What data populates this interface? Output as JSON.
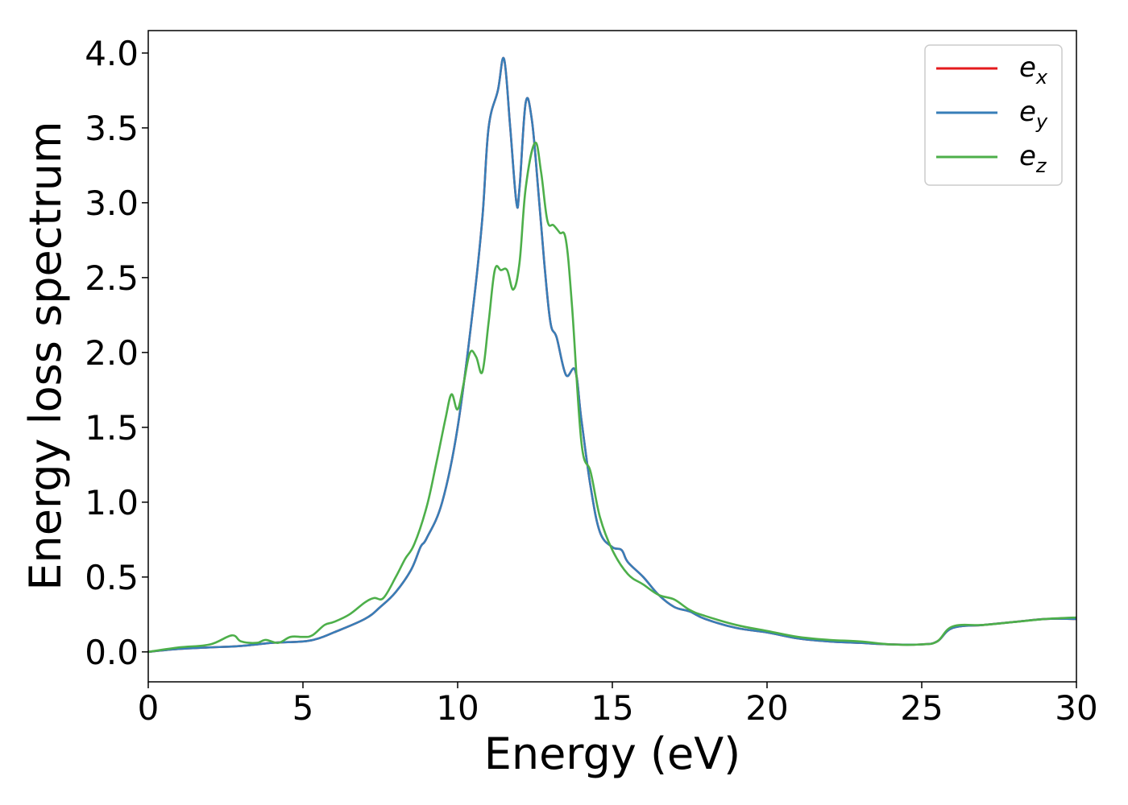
{
  "chart_data": {
    "type": "line",
    "xlabel": "Energy (eV)",
    "ylabel": "Energy loss spectrum",
    "xlim": [
      0,
      30
    ],
    "ylim": [
      -0.2,
      4.15
    ],
    "x_ticks": [
      0,
      5,
      10,
      15,
      20,
      25,
      30
    ],
    "x_tick_labels": [
      "0",
      "5",
      "10",
      "15",
      "20",
      "25",
      "30"
    ],
    "y_ticks": [
      0.0,
      0.5,
      1.0,
      1.5,
      2.0,
      2.5,
      3.0,
      3.5,
      4.0
    ],
    "y_tick_labels": [
      "0.0",
      "0.5",
      "1.0",
      "1.5",
      "2.0",
      "2.5",
      "3.0",
      "3.5",
      "4.0"
    ],
    "grid": false,
    "legend_position": "top-right",
    "series": [
      {
        "name": "e",
        "subscript": "x",
        "color": "#e41a1c",
        "x": [
          0,
          1,
          2,
          3,
          4,
          5,
          5.5,
          6,
          7,
          7.5,
          8,
          8.5,
          8.8,
          9,
          9.5,
          10,
          10.5,
          10.8,
          11,
          11.3,
          11.5,
          11.7,
          11.9,
          12,
          12.2,
          12.4,
          12.6,
          12.8,
          13,
          13.2,
          13.5,
          13.8,
          14,
          14.3,
          14.6,
          15,
          15.3,
          15.5,
          16,
          16.5,
          17,
          17.5,
          18,
          19,
          20,
          21,
          22,
          23,
          24,
          25,
          25.5,
          26,
          27,
          28,
          29,
          30
        ],
        "y": [
          0,
          0.02,
          0.03,
          0.04,
          0.06,
          0.07,
          0.09,
          0.13,
          0.22,
          0.3,
          0.4,
          0.55,
          0.7,
          0.76,
          1.0,
          1.5,
          2.3,
          2.9,
          3.5,
          3.75,
          3.96,
          3.5,
          3.0,
          3.1,
          3.67,
          3.55,
          3.1,
          2.6,
          2.2,
          2.1,
          1.85,
          1.88,
          1.55,
          1.1,
          0.8,
          0.7,
          0.68,
          0.6,
          0.5,
          0.38,
          0.3,
          0.27,
          0.22,
          0.16,
          0.13,
          0.09,
          0.07,
          0.06,
          0.05,
          0.05,
          0.07,
          0.16,
          0.18,
          0.2,
          0.22,
          0.22
        ]
      },
      {
        "name": "e",
        "subscript": "y",
        "color": "#377eb8",
        "x": [
          0,
          1,
          2,
          3,
          4,
          5,
          5.5,
          6,
          7,
          7.5,
          8,
          8.5,
          8.8,
          9,
          9.5,
          10,
          10.5,
          10.8,
          11,
          11.3,
          11.5,
          11.7,
          11.9,
          12,
          12.2,
          12.4,
          12.6,
          12.8,
          13,
          13.2,
          13.5,
          13.8,
          14,
          14.3,
          14.6,
          15,
          15.3,
          15.5,
          16,
          16.5,
          17,
          17.5,
          18,
          19,
          20,
          21,
          22,
          23,
          24,
          25,
          25.5,
          26,
          27,
          28,
          29,
          30
        ],
        "y": [
          0,
          0.02,
          0.03,
          0.04,
          0.06,
          0.07,
          0.09,
          0.13,
          0.22,
          0.3,
          0.4,
          0.55,
          0.7,
          0.76,
          1.0,
          1.5,
          2.3,
          2.9,
          3.5,
          3.75,
          3.96,
          3.5,
          3.0,
          3.1,
          3.67,
          3.55,
          3.1,
          2.6,
          2.2,
          2.1,
          1.85,
          1.88,
          1.55,
          1.1,
          0.8,
          0.7,
          0.68,
          0.6,
          0.5,
          0.38,
          0.3,
          0.27,
          0.22,
          0.16,
          0.13,
          0.09,
          0.07,
          0.06,
          0.05,
          0.05,
          0.07,
          0.16,
          0.18,
          0.2,
          0.22,
          0.22
        ]
      },
      {
        "name": "e",
        "subscript": "z",
        "color": "#4daf4a",
        "x": [
          0,
          1,
          2,
          2.7,
          3,
          3.5,
          3.8,
          4.2,
          4.6,
          5,
          5.3,
          5.7,
          6,
          6.5,
          7,
          7.3,
          7.6,
          8,
          8.3,
          8.6,
          9,
          9.3,
          9.6,
          9.8,
          10,
          10.2,
          10.4,
          10.6,
          10.8,
          11,
          11.2,
          11.4,
          11.6,
          11.8,
          12,
          12.2,
          12.5,
          12.7,
          12.9,
          13.1,
          13.3,
          13.5,
          13.7,
          14,
          14.3,
          14.6,
          15,
          15.5,
          16,
          16.5,
          17,
          17.5,
          18,
          19,
          20,
          21,
          22,
          23,
          24,
          25,
          25.5,
          26,
          27,
          28,
          29,
          30
        ],
        "y": [
          0,
          0.03,
          0.05,
          0.11,
          0.07,
          0.06,
          0.08,
          0.06,
          0.1,
          0.1,
          0.11,
          0.18,
          0.2,
          0.25,
          0.33,
          0.36,
          0.36,
          0.5,
          0.62,
          0.72,
          0.97,
          1.25,
          1.55,
          1.72,
          1.62,
          1.8,
          2.0,
          1.97,
          1.87,
          2.2,
          2.55,
          2.55,
          2.55,
          2.42,
          2.6,
          3.1,
          3.4,
          3.2,
          2.88,
          2.85,
          2.8,
          2.75,
          2.3,
          1.4,
          1.2,
          0.9,
          0.68,
          0.52,
          0.45,
          0.38,
          0.35,
          0.28,
          0.24,
          0.18,
          0.14,
          0.1,
          0.08,
          0.07,
          0.05,
          0.05,
          0.07,
          0.17,
          0.18,
          0.2,
          0.22,
          0.23
        ]
      }
    ]
  }
}
